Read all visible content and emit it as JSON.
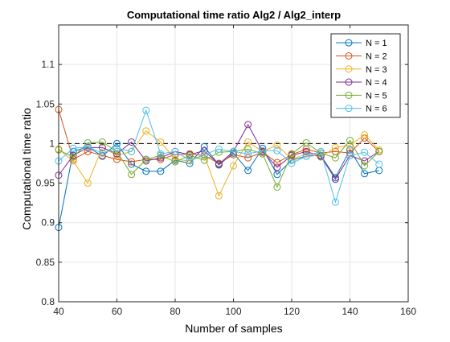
{
  "chart_data": {
    "type": "line",
    "title": "Computational time ratio Alg2 / Alg2_interp",
    "xlabel": "Number of samples",
    "ylabel": "Computational time ratio",
    "xlim": [
      40,
      160
    ],
    "ylim": [
      0.8,
      1.15
    ],
    "xticks": [
      40,
      60,
      80,
      100,
      120,
      140,
      160
    ],
    "yticks": [
      0.8,
      0.85,
      0.9,
      0.95,
      1,
      1.05,
      1.1
    ],
    "ytick_labels": [
      "0.8",
      "0.85",
      "0.9",
      "0.95",
      "1",
      "1.05",
      "1.1"
    ],
    "grid": true,
    "legend_position": "top-right",
    "marker": "circle",
    "reference_line": {
      "y": 1,
      "style": "dashed",
      "color": "#000000"
    },
    "x": [
      40,
      45,
      50,
      55,
      60,
      65,
      70,
      75,
      80,
      85,
      90,
      95,
      100,
      105,
      110,
      115,
      120,
      125,
      130,
      135,
      140,
      145,
      150
    ],
    "series": [
      {
        "name": "N = 1",
        "color": "#0072BD",
        "values": [
          0.894,
          0.99,
          0.996,
          0.984,
          1.0,
          0.974,
          0.965,
          0.965,
          0.979,
          0.975,
          0.996,
          0.973,
          0.988,
          0.966,
          0.994,
          0.961,
          0.979,
          0.984,
          0.985,
          0.957,
          0.992,
          0.962,
          0.966
        ]
      },
      {
        "name": "N = 2",
        "color": "#D95319",
        "values": [
          1.043,
          0.98,
          0.99,
          0.985,
          0.98,
          0.977,
          0.98,
          0.98,
          0.986,
          0.987,
          0.985,
          0.975,
          0.986,
          0.982,
          0.989,
          0.976,
          0.986,
          0.993,
          0.988,
          0.99,
          0.988,
          1.007,
          0.99
        ]
      },
      {
        "name": "N = 3",
        "color": "#EDB120",
        "values": [
          0.993,
          0.978,
          0.95,
          0.995,
          0.985,
          0.99,
          1.016,
          1.002,
          0.98,
          0.978,
          0.985,
          0.934,
          0.972,
          1.002,
          0.99,
          0.998,
          0.98,
          0.987,
          0.983,
          0.995,
          0.998,
          1.011,
          0.992
        ]
      },
      {
        "name": "N = 4",
        "color": "#7E2F8E",
        "values": [
          0.96,
          0.985,
          0.995,
          0.995,
          0.987,
          1.002,
          0.978,
          0.982,
          0.99,
          0.986,
          0.991,
          0.974,
          0.99,
          1.024,
          0.99,
          0.97,
          0.985,
          0.99,
          0.984,
          0.955,
          0.985,
          0.978,
          0.99
        ]
      },
      {
        "name": "N = 5",
        "color": "#77AC30",
        "values": [
          0.992,
          0.983,
          1.001,
          1.002,
          0.99,
          0.961,
          0.98,
          0.985,
          0.977,
          0.985,
          0.979,
          0.989,
          0.99,
          0.993,
          0.987,
          0.945,
          0.987,
          1.001,
          0.988,
          0.982,
          1.004,
          0.972,
          0.99
        ]
      },
      {
        "name": "N = 6",
        "color": "#4DBEEE",
        "values": [
          0.978,
          0.994,
          0.996,
          0.988,
          0.994,
          0.99,
          1.042,
          0.987,
          0.99,
          0.979,
          0.986,
          0.993,
          0.99,
          0.987,
          0.991,
          0.991,
          0.975,
          0.984,
          0.99,
          0.926,
          0.985,
          0.989,
          0.974
        ]
      }
    ]
  }
}
